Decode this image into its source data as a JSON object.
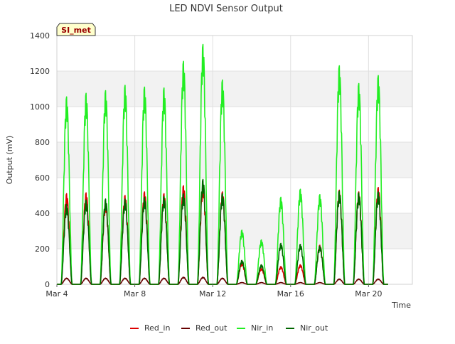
{
  "chart_data": {
    "type": "line",
    "title": "LED NDVI Sensor Output",
    "xlabel": "Time",
    "ylabel": "Output (mV)",
    "badge": "SI_met",
    "ylim": [
      0,
      1400
    ],
    "xlim": [
      4.0,
      22.25
    ],
    "yticks": [
      0,
      200,
      400,
      600,
      800,
      1000,
      1200,
      1400
    ],
    "xticks": [
      {
        "value": 4,
        "label": "Mar 4"
      },
      {
        "value": 8,
        "label": "Mar 8"
      },
      {
        "value": 12,
        "label": "Mar 12"
      },
      {
        "value": 16,
        "label": "Mar 16"
      },
      {
        "value": 20,
        "label": "Mar 20"
      }
    ],
    "days": [
      4.5,
      5.5,
      6.5,
      7.5,
      8.5,
      9.5,
      10.5,
      11.5,
      12.5,
      13.5,
      14.5,
      15.5,
      16.5,
      17.5,
      18.5,
      19.5,
      20.5
    ],
    "series": [
      {
        "name": "Red_in",
        "color": "#dd0000",
        "daily_peaks": [
          510,
          515,
          465,
          500,
          520,
          510,
          555,
          560,
          520,
          120,
          90,
          100,
          110,
          220,
          530,
          520,
          545
        ]
      },
      {
        "name": "Red_out",
        "color": "#660000",
        "daily_peaks": [
          35,
          35,
          35,
          35,
          35,
          35,
          40,
          40,
          35,
          10,
          10,
          10,
          10,
          10,
          30,
          30,
          30
        ]
      },
      {
        "name": "Nir_in",
        "color": "#22ee22",
        "daily_peaks": [
          1055,
          1075,
          1090,
          1120,
          1110,
          1105,
          1255,
          1350,
          1150,
          305,
          250,
          490,
          535,
          505,
          1230,
          1130,
          1175
        ]
      },
      {
        "name": "Nir_out",
        "color": "#006600",
        "daily_peaks": [
          450,
          475,
          480,
          480,
          490,
          495,
          510,
          590,
          510,
          135,
          110,
          230,
          225,
          215,
          525,
          515,
          520
        ]
      }
    ]
  }
}
